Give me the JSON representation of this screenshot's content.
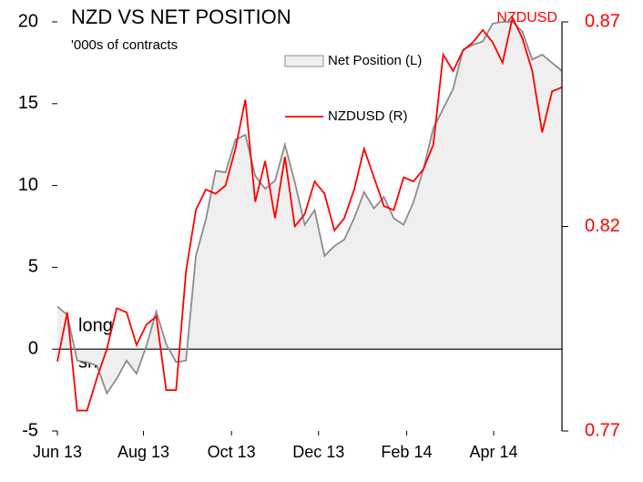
{
  "chart_data": {
    "type": "area-line",
    "title": "NZD VS NET POSITION",
    "subtitle": "'000s of contracts",
    "y2_label": "NZDUSD",
    "annotations": [
      "long",
      "short"
    ],
    "x": [
      0,
      1,
      2,
      3,
      4,
      5,
      6,
      7,
      8,
      9,
      10,
      11,
      12,
      13,
      14,
      15,
      16,
      17,
      18,
      19,
      20,
      21,
      22,
      23,
      24,
      25,
      26,
      27,
      28,
      29,
      30,
      31,
      32,
      33,
      34,
      35,
      36,
      37,
      38,
      39,
      40,
      41,
      42,
      43,
      44,
      45,
      46,
      47,
      48,
      49,
      50,
      51
    ],
    "xlim": [
      0,
      51
    ],
    "xticks": [
      {
        "value": 0,
        "label": "Jun 13"
      },
      {
        "value": 8.7,
        "label": "Aug 13"
      },
      {
        "value": 17.6,
        "label": "Oct 13"
      },
      {
        "value": 26.4,
        "label": "Dec 13"
      },
      {
        "value": 35.3,
        "label": "Feb 14"
      },
      {
        "value": 44.1,
        "label": "Apr 14"
      }
    ],
    "ylim": [
      -5,
      20
    ],
    "yticks": [
      -5,
      0,
      5,
      10,
      15,
      20
    ],
    "y2lim": [
      0.77,
      0.87
    ],
    "y2ticks": [
      0.77,
      0.82,
      0.87
    ],
    "series": [
      {
        "name": "Net Position (L)",
        "color": "#8c8c8c",
        "fill": "#efefef",
        "values": [
          2.6,
          2.1,
          -0.7,
          -0.8,
          -1,
          -2.7,
          -1.8,
          -0.7,
          -1.5,
          0.2,
          2.3,
          0.3,
          -0.8,
          -0.7,
          5.7,
          7.9,
          10.9,
          10.8,
          12.8,
          13.1,
          10.6,
          9.8,
          10.3,
          12.5,
          10.2,
          7.6,
          8.5,
          5.7,
          6.3,
          6.7,
          8,
          9.6,
          8.6,
          9.3,
          8,
          7.6,
          9,
          11,
          13.5,
          14.7,
          15.9,
          18.3,
          18.6,
          18.8,
          19.9,
          20,
          20,
          19.4,
          17.7,
          18,
          17.5,
          17
        ]
      },
      {
        "name": "NZDUSD (R)",
        "color": "#ff0000",
        "axis": "y2",
        "values": [
          0.787,
          0.799,
          0.775,
          0.775,
          0.783,
          0.79,
          0.8,
          0.799,
          0.791,
          0.796,
          0.798,
          0.78,
          0.78,
          0.809,
          0.824,
          0.829,
          0.828,
          0.83,
          0.839,
          0.851,
          0.826,
          0.836,
          0.822,
          0.837,
          0.82,
          0.823,
          0.831,
          0.828,
          0.819,
          0.822,
          0.829,
          0.839,
          0.832,
          0.825,
          0.824,
          0.832,
          0.831,
          0.834,
          0.84,
          0.862,
          0.858,
          0.863,
          0.865,
          0.868,
          0.865,
          0.86,
          0.871,
          0.866,
          0.858,
          0.843,
          0.853,
          0.854
        ]
      }
    ]
  }
}
